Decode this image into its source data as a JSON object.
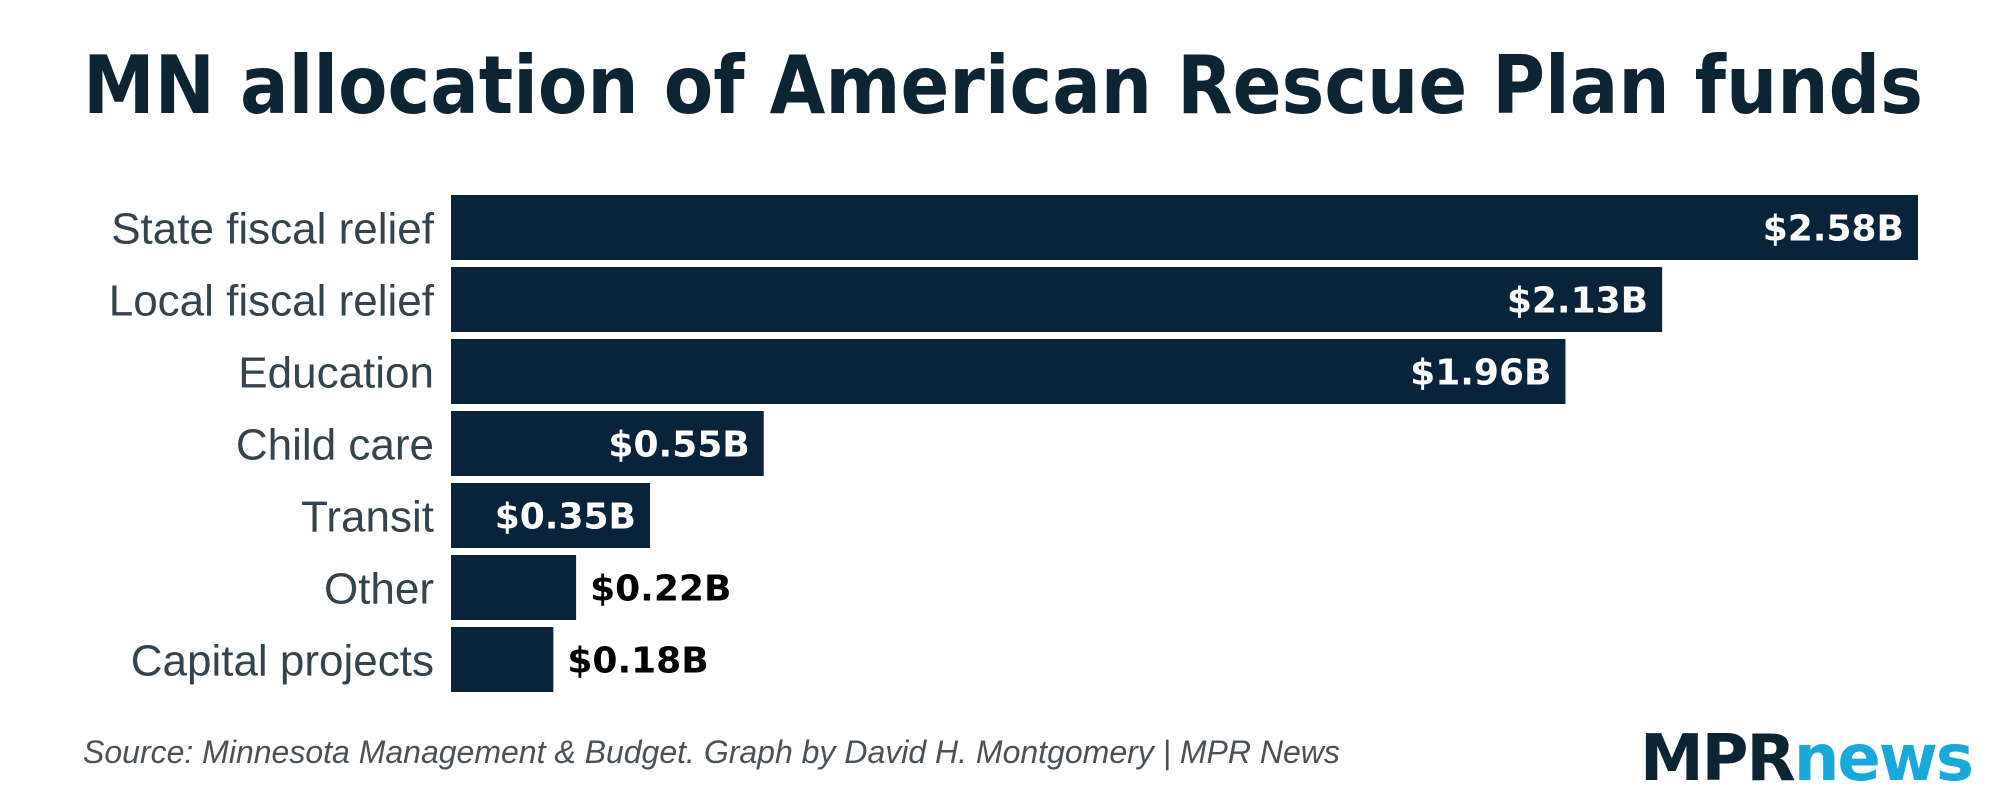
{
  "chart_data": {
    "type": "bar",
    "orientation": "horizontal",
    "title": "MN allocation of American Rescue Plan funds",
    "categories": [
      "State fiscal relief",
      "Local fiscal relief",
      "Education",
      "Child care",
      "Transit",
      "Other",
      "Capital projects"
    ],
    "values": [
      2.58,
      2.13,
      1.96,
      0.55,
      0.35,
      0.22,
      0.18
    ],
    "value_labels": [
      "$2.58B",
      "$2.13B",
      "$1.96B",
      "$0.55B",
      "$0.35B",
      "$0.22B",
      "$0.18B"
    ],
    "unit": "billion USD",
    "xlim": [
      0,
      2.58
    ],
    "xlabel": "",
    "ylabel": "",
    "grid": false,
    "legend": "none"
  },
  "source": "Source: Minnesota Management & Budget. Graph by David H. Montgomery | MPR News",
  "logo": {
    "part1": "MPR",
    "part2": "news"
  },
  "colors": {
    "bar": "#09243a",
    "title": "#0d2433",
    "category_label": "#33444e",
    "value_inside": "#ffffff",
    "value_outside": "#000000",
    "logo_mpr": "#0d2433",
    "logo_news": "#1aa7dc",
    "source": "#4a5258"
  }
}
